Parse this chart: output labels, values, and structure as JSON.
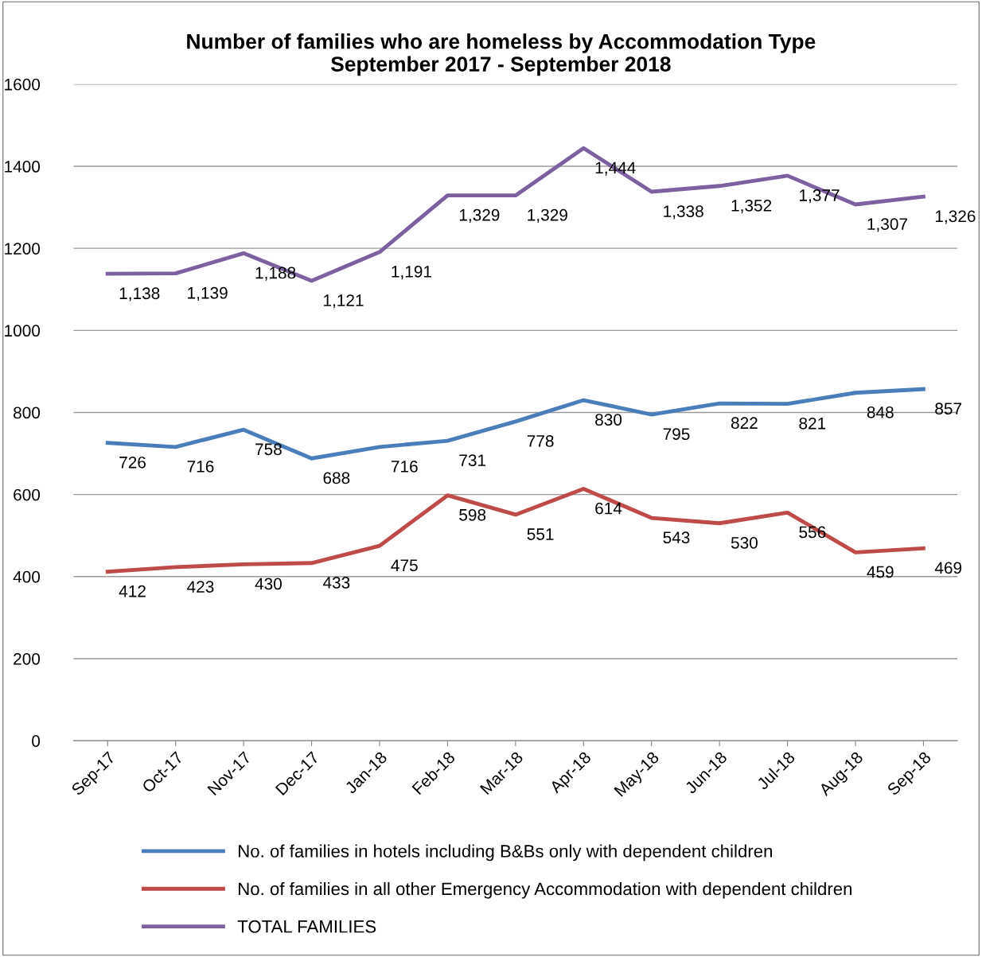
{
  "chart_data": {
    "type": "line",
    "title": "Number of families who are homeless by Accommodation Type\nSeptember 2017 - September 2018",
    "categories": [
      "Sep-17",
      "Oct-17",
      "Nov-17",
      "Dec-17",
      "Jan-18",
      "Feb-18",
      "Mar-18",
      "Apr-18",
      "May-18",
      "Jun-18",
      "Jul-18",
      "Aug-18",
      "Sep-18"
    ],
    "series": [
      {
        "name": "No. of families in hotels including B&Bs only with dependent children",
        "color": "#4a7ebb",
        "values": [
          726,
          716,
          758,
          688,
          716,
          731,
          778,
          830,
          795,
          822,
          821,
          848,
          857
        ],
        "value_labels": [
          "726",
          "716",
          "758",
          "688",
          "716",
          "731",
          "778",
          "830",
          "795",
          "822",
          "821",
          "848",
          "857"
        ]
      },
      {
        "name": "No. of families in all other Emergency Accommodation with dependent children",
        "color": "#be4b48",
        "values": [
          412,
          423,
          430,
          433,
          475,
          598,
          551,
          614,
          543,
          530,
          556,
          459,
          469
        ],
        "value_labels": [
          "412",
          "423",
          "430",
          "433",
          "475",
          "598",
          "551",
          "614",
          "543",
          "530",
          "556",
          "459",
          "469"
        ]
      },
      {
        "name": "TOTAL FAMILIES",
        "color": "#7d60a0",
        "values": [
          1138,
          1139,
          1188,
          1121,
          1191,
          1329,
          1329,
          1444,
          1338,
          1352,
          1377,
          1307,
          1326
        ],
        "value_labels": [
          "1,138",
          "1,139",
          "1,188",
          "1,121",
          "1,191",
          "1,329",
          "1,329",
          "1,444",
          "1,338",
          "1,352",
          "1,377",
          "1,307",
          "1,326"
        ]
      }
    ],
    "ylim": [
      0,
      1600
    ],
    "yticks": [
      0,
      200,
      400,
      600,
      800,
      1000,
      1200,
      1400,
      1600
    ],
    "grid": "y",
    "legend": "bottom",
    "marker": "none",
    "line_style": "solid"
  }
}
